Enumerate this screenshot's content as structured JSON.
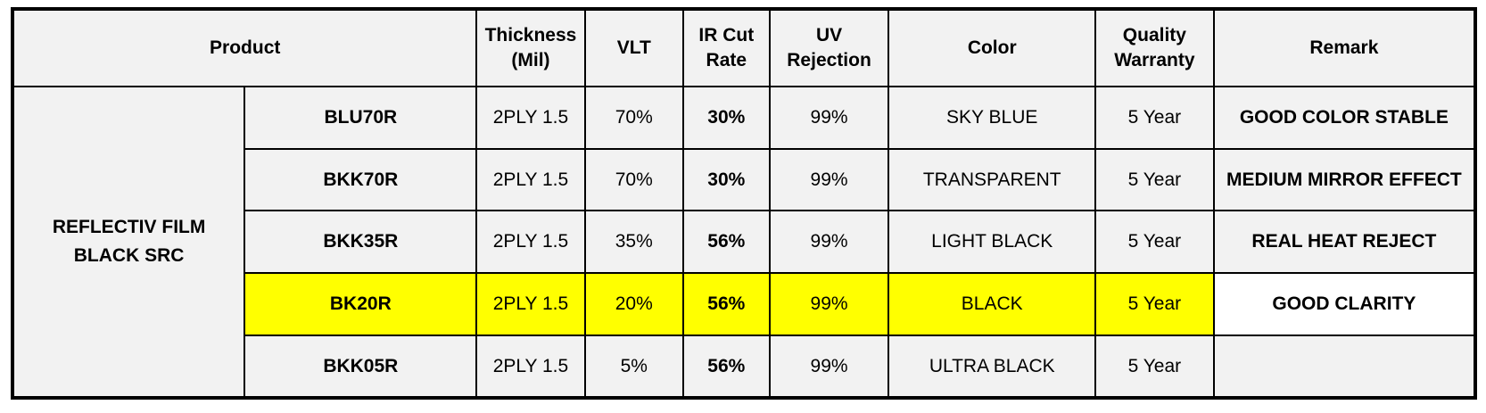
{
  "headers": {
    "product": "Product",
    "thickness_line1": "Thickness",
    "thickness_line2": "(Mil)",
    "vlt": "VLT",
    "ir_line1": "IR Cut",
    "ir_line2": "Rate",
    "uv_line1": "UV",
    "uv_line2": "Rejection",
    "color": "Color",
    "warranty_line1": "Quality",
    "warranty_line2": "Warranty",
    "remark": "Remark"
  },
  "family": {
    "line1": "REFLECTIV FILM",
    "line2": "BLACK SRC"
  },
  "rows": [
    {
      "product": "BLU70R",
      "thickness": "2PLY 1.5",
      "vlt": "70%",
      "ir": "30%",
      "uv": "99%",
      "color": "SKY BLUE",
      "warranty": "5 Year",
      "remark": "GOOD COLOR STABLE"
    },
    {
      "product": "BKK70R",
      "thickness": "2PLY 1.5",
      "vlt": "70%",
      "ir": "30%",
      "uv": "99%",
      "color": "TRANSPARENT",
      "warranty": "5 Year",
      "remark": "MEDIUM MIRROR EFFECT"
    },
    {
      "product": "BKK35R",
      "thickness": "2PLY 1.5",
      "vlt": "35%",
      "ir": "56%",
      "uv": "99%",
      "color": "LIGHT BLACK",
      "warranty": "5 Year",
      "remark": "REAL HEAT REJECT"
    },
    {
      "product": "BK20R",
      "thickness": "2PLY 1.5",
      "vlt": "20%",
      "ir": "56%",
      "uv": "99%",
      "color": "BLACK",
      "warranty": "5 Year",
      "remark": "GOOD CLARITY"
    },
    {
      "product": "BKK05R",
      "thickness": "2PLY 1.5",
      "vlt": "5%",
      "ir": "56%",
      "uv": "99%",
      "color": "ULTRA BLACK",
      "warranty": "5 Year",
      "remark": ""
    }
  ],
  "colors": {
    "header_text": "#c00000",
    "family_text": "#ff0000",
    "ir_text": "#833c0b",
    "highlight_row": "#ffff00",
    "cell_bg": "#f2f2f2"
  }
}
